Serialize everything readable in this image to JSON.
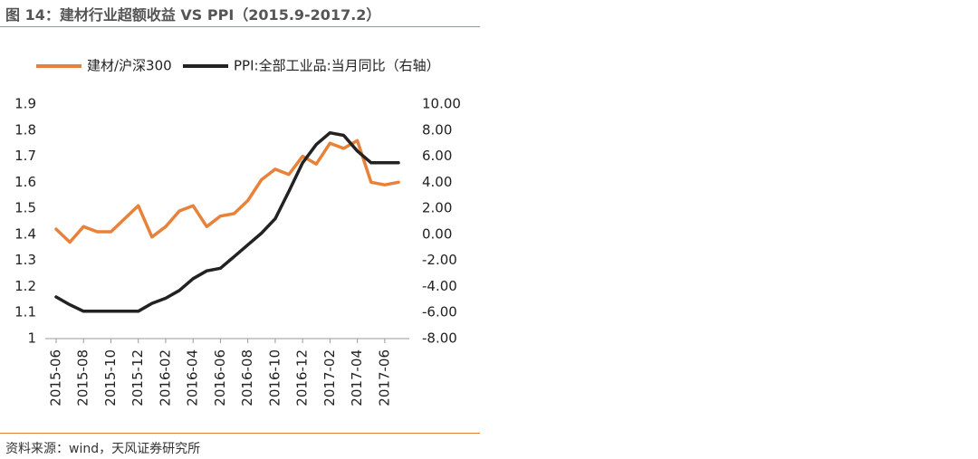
{
  "header": {
    "title": "图 14：建材行业超额收益 VS PPI（2015.9-2017.2）"
  },
  "footer": {
    "source": "资料来源：wind，天风证券研究所"
  },
  "chart_data": {
    "type": "line",
    "title": "",
    "legend_position": "top-left",
    "grid": false,
    "x_tick_labels": [
      "2015-06",
      "2015-08",
      "2015-10",
      "2015-12",
      "2016-02",
      "2016-04",
      "2016-06",
      "2016-08",
      "2016-10",
      "2016-12",
      "2017-02",
      "2017-04",
      "2017-06"
    ],
    "y_left": {
      "ticks": [
        "1.9",
        "1.8",
        "1.7",
        "1.6",
        "1.5",
        "1.4",
        "1.3",
        "1.2",
        "1.1",
        "1"
      ],
      "ylim": [
        1.0,
        1.9
      ]
    },
    "y_right": {
      "ticks": [
        "10.00",
        "8.00",
        "6.00",
        "4.00",
        "2.00",
        "0.00",
        "-2.00",
        "-4.00",
        "-6.00",
        "-8.00"
      ],
      "ylim": [
        -8,
        10
      ]
    },
    "colors": {
      "orange": "#E8823A",
      "black": "#222222",
      "rule": "#E8823A"
    },
    "series": [
      {
        "name": "建材/沪深300",
        "axis": "left",
        "color": "#E8823A",
        "x": [
          "2015-06",
          "2015-07",
          "2015-08",
          "2015-09",
          "2015-10",
          "2015-11",
          "2015-12",
          "2016-01",
          "2016-02",
          "2016-03",
          "2016-04",
          "2016-05",
          "2016-06",
          "2016-07",
          "2016-08",
          "2016-09",
          "2016-10",
          "2016-11",
          "2016-12",
          "2017-01",
          "2017-02",
          "2017-03",
          "2017-04",
          "2017-05",
          "2017-06",
          "2017-07"
        ],
        "values": [
          1.42,
          1.37,
          1.43,
          1.41,
          1.41,
          1.46,
          1.51,
          1.39,
          1.43,
          1.49,
          1.51,
          1.43,
          1.47,
          1.48,
          1.53,
          1.61,
          1.65,
          1.63,
          1.7,
          1.67,
          1.75,
          1.73,
          1.76,
          1.6,
          1.59,
          1.6
        ]
      },
      {
        "name": "PPI:全部工业品:当月同比（右轴）",
        "axis": "right",
        "color": "#222222",
        "x": [
          "2015-06",
          "2015-07",
          "2015-08",
          "2015-09",
          "2015-10",
          "2015-11",
          "2015-12",
          "2016-01",
          "2016-02",
          "2016-03",
          "2016-04",
          "2016-05",
          "2016-06",
          "2016-07",
          "2016-08",
          "2016-09",
          "2016-10",
          "2016-11",
          "2016-12",
          "2017-01",
          "2017-02",
          "2017-03",
          "2017-04",
          "2017-05",
          "2017-06",
          "2017-07"
        ],
        "values": [
          -4.8,
          -5.4,
          -5.9,
          -5.9,
          -5.9,
          -5.9,
          -5.9,
          -5.3,
          -4.9,
          -4.3,
          -3.4,
          -2.8,
          -2.6,
          -1.7,
          -0.8,
          0.1,
          1.2,
          3.3,
          5.5,
          6.9,
          7.8,
          7.6,
          6.4,
          5.5,
          5.5,
          5.5
        ]
      }
    ]
  }
}
